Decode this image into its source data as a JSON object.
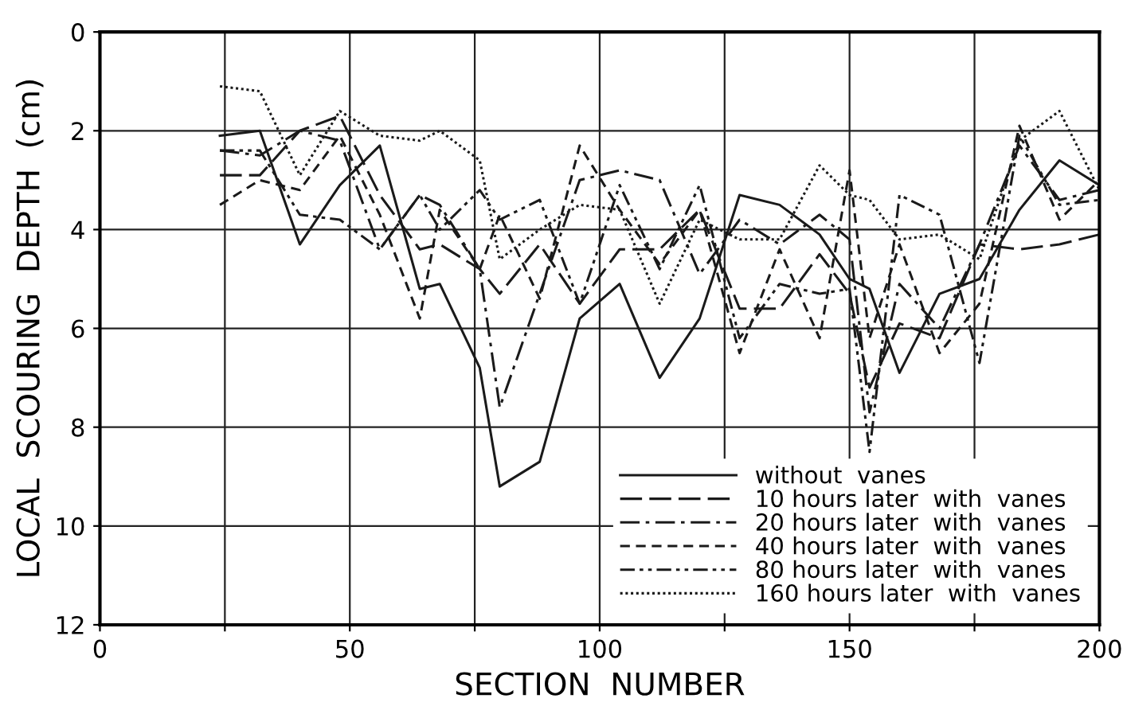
{
  "chart_data": {
    "type": "line",
    "xlabel": "SECTION  NUMBER",
    "ylabel": "LOCAL  SCOURING  DEPTH  (cm)",
    "xlim": [
      0,
      200
    ],
    "ylim": [
      12,
      0
    ],
    "xticks": [
      0,
      {
        "value": 25,
        "label": null
      },
      50,
      {
        "value": 75,
        "label": null
      },
      100,
      {
        "value": 125,
        "label": null
      },
      150,
      {
        "value": 175,
        "label": null
      },
      200
    ],
    "yticks": [
      0,
      2,
      4,
      6,
      8,
      10,
      12
    ],
    "grid": true,
    "legend": "bottom right",
    "color": "#1a1a1a",
    "series": [
      {
        "name": "without  vanes",
        "line_style": "solid",
        "x": [
          24,
          32,
          40,
          48,
          56,
          64,
          68,
          76,
          80,
          88,
          96,
          104,
          112,
          120,
          128,
          136,
          144,
          150,
          154,
          160,
          168,
          176,
          184,
          192,
          200
        ],
        "values": [
          2.1,
          2.0,
          4.3,
          3.1,
          2.3,
          5.2,
          5.1,
          6.8,
          9.2,
          8.7,
          5.8,
          5.1,
          7.0,
          5.8,
          3.3,
          3.5,
          4.1,
          5.0,
          5.2,
          6.9,
          5.3,
          5.0,
          3.6,
          2.6,
          3.1
        ]
      },
      {
        "name": "10 hours later  with  vanes",
        "line_style": "long dash",
        "x": [
          24,
          32,
          40,
          48,
          56,
          64,
          68,
          76,
          80,
          88,
          96,
          104,
          112,
          120,
          128,
          136,
          144,
          150,
          154,
          160,
          168,
          176,
          184,
          192,
          200
        ],
        "values": [
          2.9,
          2.9,
          2.0,
          1.7,
          3.3,
          4.4,
          4.3,
          4.8,
          5.3,
          4.3,
          5.5,
          4.4,
          4.4,
          3.6,
          5.6,
          5.6,
          4.5,
          5.3,
          7.2,
          5.9,
          6.2,
          4.3,
          4.4,
          4.3,
          4.1
        ]
      },
      {
        "name": "20 hours later  with  vanes",
        "line_style": "dash dot",
        "x": [
          24,
          32,
          40,
          48,
          56,
          64,
          68,
          76,
          80,
          88,
          96,
          104,
          112,
          120,
          128,
          136,
          144,
          150,
          154,
          160,
          168,
          176,
          184,
          192,
          200
        ],
        "values": [
          2.4,
          2.5,
          2.0,
          2.2,
          4.4,
          3.3,
          3.5,
          4.8,
          7.6,
          5.3,
          3.0,
          2.8,
          3.0,
          4.9,
          3.8,
          4.3,
          3.7,
          4.2,
          7.7,
          5.1,
          6.0,
          4.3,
          2.3,
          3.4,
          3.2
        ]
      },
      {
        "name": "40 hours later  with  vanes",
        "line_style": "dashed",
        "x": [
          24,
          32,
          40,
          48,
          56,
          64,
          68,
          76,
          80,
          88,
          96,
          104,
          112,
          120,
          128,
          136,
          144,
          150,
          154,
          160,
          168,
          176,
          184,
          192,
          200
        ],
        "values": [
          3.5,
          3.0,
          3.2,
          2.1,
          3.7,
          5.8,
          3.6,
          4.8,
          3.7,
          5.4,
          2.3,
          3.6,
          4.7,
          3.6,
          6.5,
          4.4,
          6.2,
          2.8,
          6.2,
          4.3,
          6.5,
          5.5,
          1.9,
          3.8,
          3.0
        ]
      },
      {
        "name": "80 hours later  with  vanes",
        "line_style": "dash dot dot",
        "x": [
          24,
          32,
          40,
          48,
          56,
          64,
          68,
          76,
          80,
          88,
          96,
          104,
          112,
          120,
          128,
          136,
          144,
          150,
          154,
          160,
          168,
          176,
          184,
          192,
          200
        ],
        "values": [
          2.4,
          2.4,
          3.7,
          3.8,
          4.4,
          3.3,
          4.0,
          3.2,
          3.8,
          3.4,
          5.5,
          3.1,
          4.8,
          3.1,
          6.2,
          5.1,
          5.3,
          5.2,
          8.5,
          3.3,
          3.7,
          6.7,
          2.1,
          3.5,
          3.4
        ]
      },
      {
        "name": "160 hours later  with  vanes",
        "line_style": "dotted",
        "x": [
          24,
          32,
          40,
          48,
          56,
          64,
          68,
          76,
          80,
          88,
          96,
          104,
          112,
          120,
          128,
          136,
          144,
          150,
          154,
          160,
          168,
          176,
          184,
          192,
          200
        ],
        "values": [
          1.1,
          1.2,
          2.9,
          1.6,
          2.1,
          2.2,
          2.0,
          2.6,
          4.6,
          4.0,
          3.5,
          3.6,
          5.5,
          3.8,
          4.2,
          4.2,
          2.7,
          3.3,
          3.4,
          4.2,
          4.1,
          4.6,
          2.2,
          1.6,
          3.2
        ]
      }
    ]
  }
}
